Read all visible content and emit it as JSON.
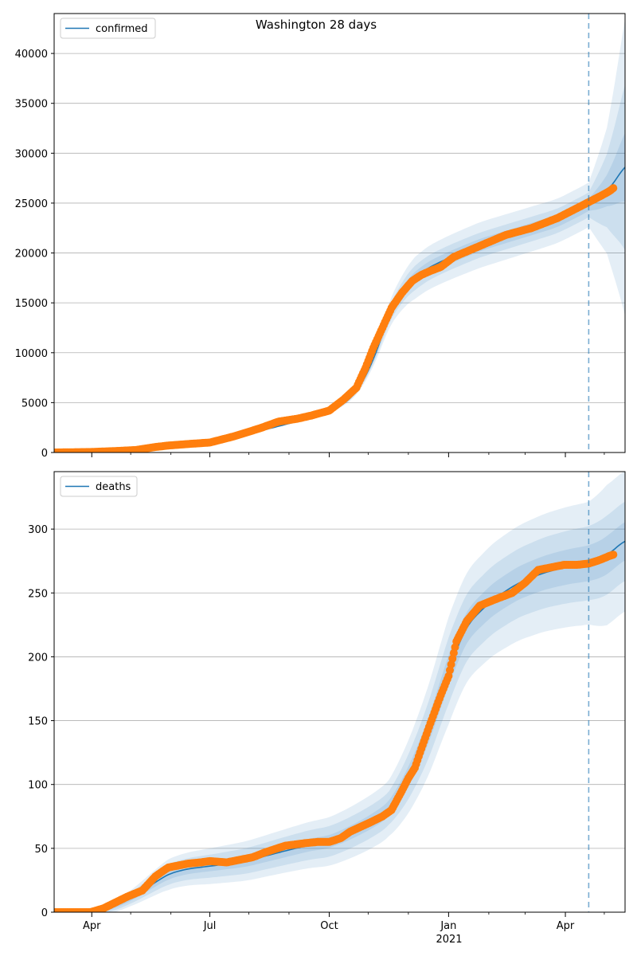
{
  "chart_data": {
    "title": "Washington 28 days",
    "x_tick_labels": [
      "Apr",
      "Jul",
      "Oct",
      "Jan",
      "Apr"
    ],
    "x_year_label": "2021",
    "x_tick_days": [
      1,
      92,
      184,
      276,
      366
    ],
    "x_minor_tick_days": [
      31,
      62,
      122,
      153,
      214,
      245,
      307,
      335,
      396
    ],
    "x_range_days": [
      -28,
      412
    ],
    "forecast_start_day": 384,
    "panels": [
      {
        "type": "line",
        "legend": "confirmed",
        "legend_position": "upper-left",
        "ylim": [
          0,
          44000
        ],
        "yticks": [
          0,
          5000,
          10000,
          15000,
          20000,
          25000,
          30000,
          35000,
          40000
        ],
        "fit": {
          "x": [
            -28,
            0,
            20,
            60,
            92,
            120,
            150,
            170,
            184,
            200,
            210,
            222,
            230,
            245,
            260,
            276,
            300,
            330,
            360,
            384,
            395,
            405,
            412
          ],
          "y": [
            0,
            50,
            150,
            600,
            1000,
            1800,
            2800,
            3500,
            4000,
            5300,
            7000,
            10500,
            14000,
            17000,
            18500,
            19500,
            20800,
            22000,
            23200,
            24800,
            25800,
            27200,
            29000
          ]
        },
        "bands_ratio": [
          {
            "x": [
              -28,
              180,
              200,
              220,
              250,
              300,
              384,
              398,
              412
            ],
            "half_width": [
              0.0,
              0.03,
              0.05,
              0.08,
              0.12,
              0.11,
              0.09,
              0.24,
              0.52
            ]
          },
          {
            "x": [
              -28,
              180,
              200,
              220,
              250,
              300,
              384,
              398,
              412
            ],
            "half_width": [
              0.0,
              0.02,
              0.03,
              0.05,
              0.07,
              0.06,
              0.05,
              0.14,
              0.29
            ]
          },
          {
            "x": [
              -28,
              180,
              200,
              220,
              250,
              300,
              384,
              398,
              412
            ],
            "half_width": [
              0.0,
              0.01,
              0.015,
              0.025,
              0.035,
              0.03,
              0.025,
              0.06,
              0.12
            ]
          }
        ],
        "observed": {
          "x": [
            -28,
            0,
            20,
            35,
            50,
            60,
            75,
            92,
            110,
            130,
            145,
            160,
            170,
            184,
            195,
            205,
            212,
            218,
            225,
            232,
            240,
            248,
            255,
            262,
            270,
            280,
            300,
            320,
            340,
            360,
            372,
            384,
            393,
            400,
            403
          ],
          "y": [
            0,
            50,
            150,
            250,
            550,
            700,
            850,
            1000,
            1600,
            2400,
            3100,
            3400,
            3700,
            4200,
            5300,
            6500,
            8500,
            10500,
            12500,
            14500,
            16000,
            17200,
            17800,
            18200,
            18600,
            19600,
            20700,
            21800,
            22500,
            23500,
            24300,
            25100,
            25700,
            26200,
            26500
          ]
        }
      },
      {
        "type": "line",
        "legend": "deaths",
        "legend_position": "upper-left",
        "ylim": [
          0,
          345
        ],
        "yticks": [
          0,
          50,
          100,
          150,
          200,
          250,
          300
        ],
        "fit": {
          "x": [
            -28,
            0,
            15,
            30,
            45,
            60,
            75,
            92,
            120,
            150,
            170,
            184,
            200,
            215,
            230,
            245,
            260,
            276,
            290,
            310,
            330,
            350,
            370,
            384,
            395,
            405,
            412
          ],
          "y": [
            0,
            0,
            3,
            10,
            20,
            30,
            34,
            36,
            40,
            48,
            53,
            55,
            62,
            70,
            80,
            105,
            140,
            190,
            225,
            245,
            258,
            266,
            271,
            273,
            277,
            285,
            292
          ]
        },
        "bands_abs": [
          {
            "x": [
              -28,
              0,
              30,
              60,
              92,
              150,
              184,
              230,
              260,
              276,
              330,
              384,
              398,
              412
            ],
            "half_width": [
              2,
              3,
              6,
              12,
              14,
              17,
              19,
              22,
              35,
              42,
              45,
              48,
              55,
              55
            ]
          },
          {
            "x": [
              -28,
              0,
              30,
              60,
              92,
              150,
              184,
              230,
              260,
              276,
              330,
              384,
              398,
              412
            ],
            "half_width": [
              1,
              2,
              4,
              8,
              9,
              11,
              12,
              13,
              22,
              26,
              27,
              29,
              31,
              31
            ]
          },
          {
            "x": [
              -28,
              0,
              30,
              60,
              92,
              150,
              184,
              230,
              260,
              276,
              330,
              384,
              398,
              412
            ],
            "half_width": [
              0.5,
              1,
              2,
              4,
              4,
              5,
              5,
              6,
              10,
              12,
              13,
              14,
              15,
              15
            ]
          }
        ],
        "observed": {
          "x": [
            -28,
            0,
            10,
            20,
            28,
            40,
            50,
            57,
            60,
            65,
            75,
            85,
            92,
            105,
            115,
            125,
            135,
            150,
            165,
            175,
            184,
            193,
            200,
            215,
            225,
            232,
            240,
            245,
            250,
            255,
            262,
            270,
            276,
            282,
            290,
            300,
            312,
            325,
            335,
            345,
            355,
            365,
            375,
            384,
            393,
            400,
            403
          ],
          "y": [
            0,
            0,
            3,
            8,
            12,
            17,
            28,
            33,
            35,
            36,
            38,
            39,
            40,
            39,
            41,
            43,
            47,
            52,
            54,
            55,
            55,
            58,
            63,
            70,
            75,
            80,
            95,
            105,
            113,
            128,
            148,
            170,
            185,
            212,
            228,
            240,
            245,
            250,
            258,
            268,
            270,
            272,
            272,
            273,
            276,
            279,
            280
          ]
        }
      }
    ]
  },
  "colors": {
    "line": "#1f77b4",
    "band": "#1f77b4",
    "observed": "#ff7f0e",
    "grid": "#b0b0b0",
    "axes": "#000000"
  }
}
